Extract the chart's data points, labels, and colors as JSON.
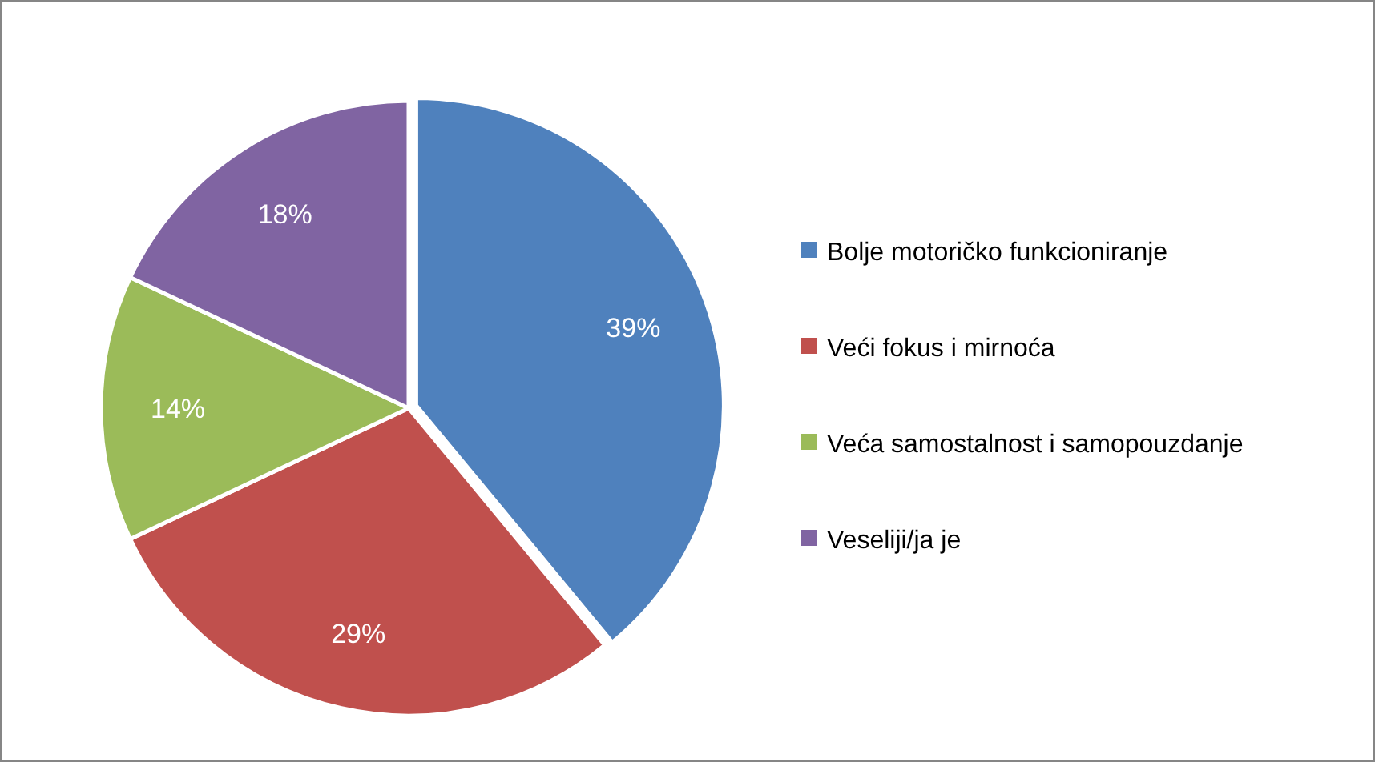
{
  "chart_data": {
    "type": "pie",
    "categories": [
      "Bolje motoričko funkcioniranje",
      "Veći fokus i mirnoća",
      "Veća samostalnost i samopouzdanje",
      "Veseliji/ja je"
    ],
    "values": [
      39,
      29,
      14,
      18
    ],
    "colors": [
      "#4f81bd",
      "#c0504d",
      "#9bbb59",
      "#8064a2"
    ],
    "value_labels": [
      "39%",
      "29%",
      "14%",
      "18%"
    ],
    "legend": "right"
  }
}
